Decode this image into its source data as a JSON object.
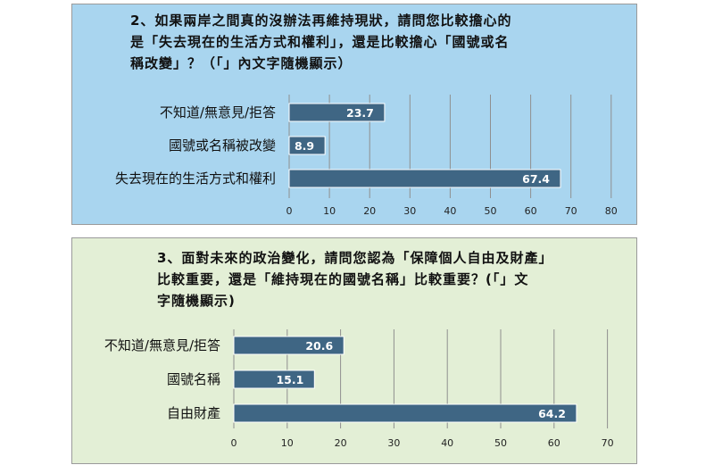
{
  "chart_data": [
    {
      "type": "bar",
      "orientation": "horizontal",
      "title": "2、如果兩岸之間真的沒辦法再維持現狀，請問您比較擔心的\n是「失去現在的生活方式和權利」，還是比較擔心「國號或名\n稱改變」？（「」內文字隨機顯示）",
      "categories": [
        "不知道/無意見/拒答",
        "國號或名稱被改變",
        "失去現在的生活方式和權利"
      ],
      "values": [
        23.7,
        8.9,
        67.4
      ],
      "data_labels": [
        "23.7",
        "8.9",
        "67.4"
      ],
      "xlim": [
        0,
        80
      ],
      "ticks": [
        "0",
        "10",
        "20",
        "30",
        "40",
        "50",
        "60",
        "70",
        "80"
      ],
      "grid": true,
      "background_color": "#a9d5ef",
      "bar_color": "#3f6684"
    },
    {
      "type": "bar",
      "orientation": "horizontal",
      "title": "3、面對未來的政治變化，請問您認為「保障個人自由及財產」\n比較重要，還是「維持現在的國號名稱」比較重要？(「」文\n字隨機顯示)",
      "categories": [
        "不知道/無意見/拒答",
        "國號名稱",
        "自由財產"
      ],
      "values": [
        20.6,
        15.1,
        64.2
      ],
      "data_labels": [
        "20.6",
        "15.1",
        "64.2"
      ],
      "xlim": [
        0,
        70
      ],
      "ticks": [
        "0",
        "10",
        "20",
        "30",
        "40",
        "50",
        "60",
        "70"
      ],
      "grid": true,
      "background_color": "#e3efd6",
      "bar_color": "#3f6684"
    }
  ]
}
